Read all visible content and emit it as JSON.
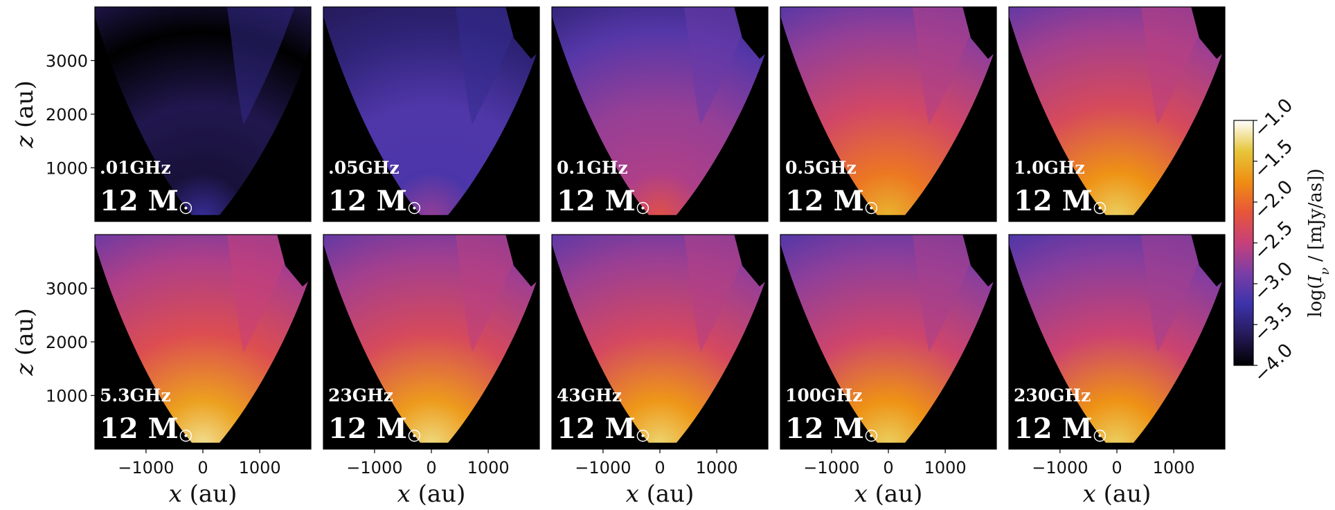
{
  "chart_data": {
    "type": "heatmap",
    "title": "",
    "grid": "off",
    "panels": [
      {
        "freq_label": ".01GHz",
        "mass_label": "12 M",
        "brightness_level": 0.15,
        "core_level": 0.22
      },
      {
        "freq_label": ".05GHz",
        "mass_label": "12 M",
        "brightness_level": 0.33,
        "core_level": 0.42
      },
      {
        "freq_label": "0.1GHz",
        "mass_label": "12 M",
        "brightness_level": 0.46,
        "core_level": 0.6
      },
      {
        "freq_label": "0.5GHz",
        "mass_label": "12 M",
        "brightness_level": 0.58,
        "core_level": 0.84
      },
      {
        "freq_label": "1.0GHz",
        "mass_label": "12 M",
        "brightness_level": 0.6,
        "core_level": 0.9
      },
      {
        "freq_label": "5.3GHz",
        "mass_label": "12 M",
        "brightness_level": 0.62,
        "core_level": 0.93
      },
      {
        "freq_label": "23GHz",
        "mass_label": "12 M",
        "brightness_level": 0.6,
        "core_level": 0.92
      },
      {
        "freq_label": "43GHz",
        "mass_label": "12 M",
        "brightness_level": 0.59,
        "core_level": 0.91
      },
      {
        "freq_label": "100GHz",
        "mass_label": "12 M",
        "brightness_level": 0.57,
        "core_level": 0.9
      },
      {
        "freq_label": "230GHz",
        "mass_label": "12 M",
        "brightness_level": 0.56,
        "core_level": 0.9
      }
    ],
    "x_axis": {
      "label": "x (au)",
      "label_var": "x",
      "label_unit": "(au)",
      "range": [
        -1900,
        1900
      ],
      "ticks": [
        -1000,
        0,
        1000
      ],
      "tick_labels": [
        "−1000",
        "0",
        "1000"
      ]
    },
    "y_axis": {
      "label": "z (au)",
      "label_var": "z",
      "label_unit": "(au)",
      "range": [
        0,
        4000
      ],
      "ticks": [
        1000,
        2000,
        3000
      ],
      "tick_labels": [
        "1000",
        "2000",
        "3000"
      ]
    },
    "colorbar": {
      "label": "log(Iν / [mJy/as])",
      "label_main": "log(",
      "label_var": "I",
      "label_sub": "ν",
      "label_rest": " / [mJy/as])",
      "range": [
        -4.0,
        -1.0
      ],
      "ticks": [
        -4.0,
        -3.5,
        -3.0,
        -2.5,
        -2.0,
        -1.5,
        -1.0
      ],
      "tick_labels": [
        "−4.0",
        "−3.5",
        "−3.0",
        "−2.5",
        "−2.0",
        "−1.5",
        "−1.0"
      ],
      "colormap": "CMRmap",
      "colormap_stops": [
        "#000000",
        "#261a59",
        "#3c33aa",
        "#7a3ea6",
        "#c6407a",
        "#e8553a",
        "#ef8e12",
        "#e6c63a",
        "#ffffff"
      ]
    },
    "source_marker": {
      "x_au": -300,
      "z_au": 250
    }
  }
}
